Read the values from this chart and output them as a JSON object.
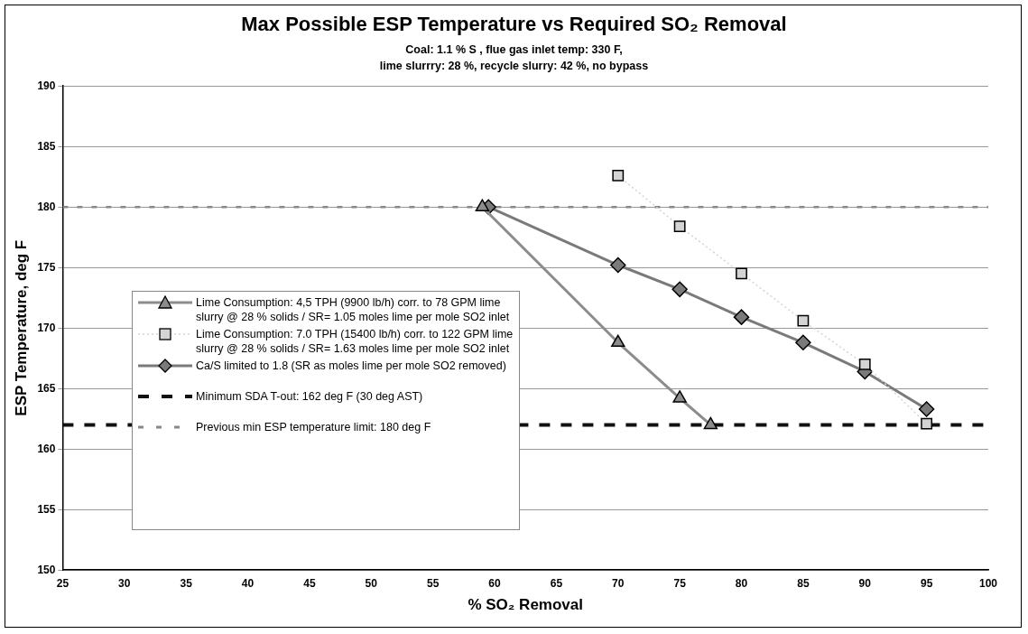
{
  "chart_data": {
    "type": "line",
    "title": "Max Possible ESP Temperature vs Required SO₂ Removal",
    "subtitle": "Coal: 1.1 % S , flue gas inlet temp: 330 F,\nlime slurrry: 28 %, recycle slurry: 42 %, no bypass",
    "xlabel": "% SO₂ Removal",
    "ylabel": "ESP Temperature, deg F",
    "xlim": [
      25,
      100
    ],
    "xticks": [
      25,
      30,
      35,
      40,
      45,
      50,
      55,
      60,
      65,
      70,
      75,
      80,
      85,
      90,
      95,
      100
    ],
    "ylim": [
      150,
      190
    ],
    "yticks": [
      150,
      155,
      160,
      165,
      170,
      175,
      180,
      185,
      190
    ],
    "grid": "y",
    "legend": "left",
    "series": [
      {
        "name": "Lime Consumption: 4,5 TPH (9900 lb/h) corr. to 78 GPM lime slurry @ 28 % solids / SR= 1.05 moles lime per mole SO2 inlet",
        "color": "#8c8c8c",
        "marker": "triangle",
        "line_style": "solid",
        "x": [
          59,
          70,
          75,
          77.5
        ],
        "values": [
          180,
          168.8,
          164.2,
          162
        ]
      },
      {
        "name": "Lime Consumption: 7.0 TPH (15400 lb/h) corr. to 122 GPM lime slurry @ 28 % solids / SR= 1.63 moles lime per mole SO2 inlet",
        "color": "#d4d4d4",
        "marker": "square",
        "line_style": "dotted",
        "x": [
          70,
          75,
          80,
          85,
          90,
          95
        ],
        "values": [
          182.6,
          178.4,
          174.5,
          170.6,
          167,
          162.1
        ]
      },
      {
        "name": "Ca/S limited to 1.8 (SR as moles lime per mole SO2 removed)",
        "color": "#7a7a7a",
        "marker": "diamond",
        "line_style": "solid",
        "x": [
          59.5,
          70,
          75,
          80,
          85,
          90,
          95
        ],
        "values": [
          180,
          175.2,
          173.2,
          170.9,
          168.8,
          166.4,
          163.3
        ]
      }
    ],
    "ref_lines": [
      {
        "axis": "y",
        "value": 162,
        "label": "Minimum SDA T-out: 162 deg F (30 deg AST)",
        "color": "#111111",
        "line_style": "dashed"
      },
      {
        "axis": "y",
        "value": 180,
        "label": "Previous min ESP temperature limit: 180 deg F",
        "color": "#888888",
        "line_style": "dotted"
      }
    ]
  }
}
